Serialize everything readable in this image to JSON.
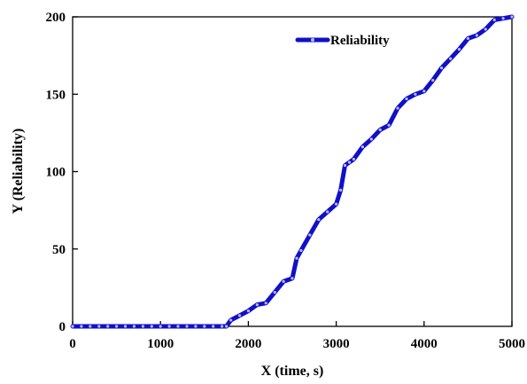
{
  "chart_data": {
    "type": "line",
    "title": "",
    "xlabel": "X (time, s)",
    "ylabel": "Y (Reliability)",
    "xlim": [
      0,
      5000
    ],
    "ylim": [
      0,
      200
    ],
    "xticks": [
      0,
      1000,
      2000,
      3000,
      4000,
      5000
    ],
    "yticks": [
      0,
      50,
      100,
      150,
      200
    ],
    "xtick_labels": [
      "0",
      "1000",
      "2000",
      "3000",
      "4000",
      "5000"
    ],
    "ytick_labels": [
      "0",
      "50",
      "100",
      "150",
      "200"
    ],
    "grid": false,
    "legend": {
      "placement": "top-center",
      "entries": [
        "Reliability"
      ]
    },
    "series_color": "#1010c8",
    "series": [
      {
        "name": "Reliability",
        "x": [
          0,
          100,
          200,
          300,
          400,
          500,
          600,
          700,
          800,
          900,
          1000,
          1100,
          1200,
          1300,
          1400,
          1500,
          1600,
          1700,
          1750,
          1800,
          1900,
          2000,
          2100,
          2200,
          2300,
          2400,
          2500,
          2550,
          2600,
          2700,
          2800,
          2900,
          3000,
          3050,
          3100,
          3150,
          3200,
          3300,
          3400,
          3500,
          3600,
          3700,
          3800,
          3900,
          4000,
          4100,
          4200,
          4300,
          4400,
          4500,
          4600,
          4700,
          4800,
          4900,
          5000
        ],
        "values": [
          0,
          0,
          0,
          0,
          0,
          0,
          0,
          0,
          0,
          0,
          0,
          0,
          0,
          0,
          0,
          0,
          0,
          0,
          0,
          4,
          7,
          10,
          14,
          15,
          22,
          29,
          31,
          44,
          49,
          59,
          69,
          74,
          79,
          88,
          104,
          106,
          108,
          116,
          121,
          127,
          130,
          141,
          147,
          150,
          152,
          159,
          167,
          173,
          179,
          186,
          188,
          192,
          198,
          199,
          200
        ]
      }
    ]
  }
}
